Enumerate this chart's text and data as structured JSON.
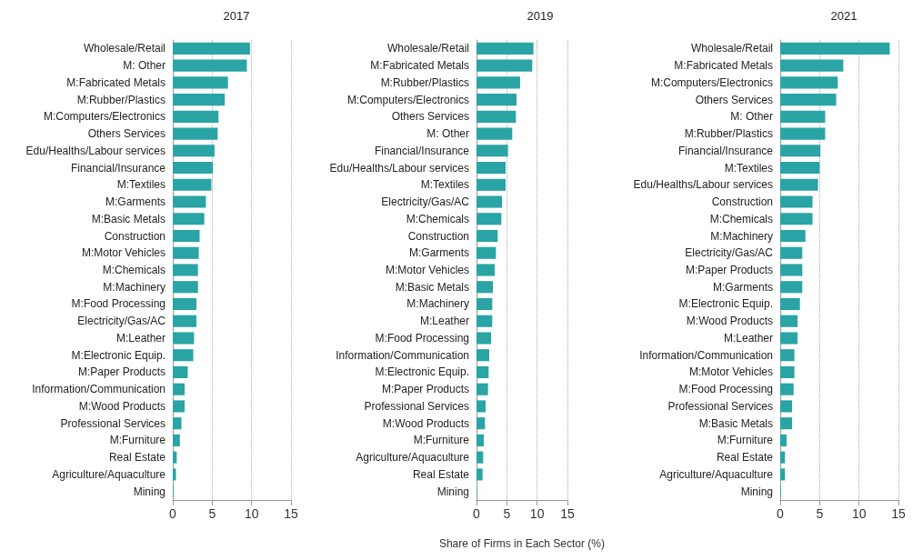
{
  "chart_data": [
    {
      "type": "bar",
      "orientation": "horizontal",
      "title": "2017",
      "color": "#2aa4a4",
      "grid": "x",
      "xlim": [
        0,
        15
      ],
      "xticks": [
        0,
        5,
        10,
        15
      ],
      "categories": [
        "Wholesale/Retail",
        "M: Other",
        "M:Fabricated Metals",
        "M:Rubber/Plastics",
        "M:Computers/Electronics",
        "Others Services",
        "Edu/Healths/Labour services",
        "Financial/Insurance",
        "M:Textiles",
        "M:Garments",
        "M:Basic Metals",
        "Construction",
        "M:Motor Vehicles",
        "M:Chemicals",
        "M:Machinery",
        "M:Food Processing",
        "Electricity/Gas/AC",
        "M:Leather",
        "M:Electronic Equip.",
        "M:Paper Products",
        "Information/Communication",
        "M:Wood Products",
        "Professional Services",
        "M:Furniture",
        "Real Estate",
        "Agriculture/Aquaculture",
        "Mining"
      ],
      "values": [
        9.8,
        9.4,
        7.0,
        6.6,
        5.8,
        5.7,
        5.3,
        5.1,
        4.9,
        4.2,
        4.0,
        3.4,
        3.3,
        3.2,
        3.2,
        3.0,
        3.0,
        2.7,
        2.6,
        1.9,
        1.5,
        1.5,
        1.1,
        0.9,
        0.5,
        0.4,
        0.1
      ]
    },
    {
      "type": "bar",
      "orientation": "horizontal",
      "title": "2019",
      "color": "#2aa4a4",
      "grid": "x",
      "xlim": [
        0,
        15
      ],
      "xticks": [
        0,
        5,
        10,
        15
      ],
      "xlabel": "Share of Firms in Each Sector (%)",
      "categories": [
        "Wholesale/Retail",
        "M:Fabricated Metals",
        "M:Rubber/Plastics",
        "M:Computers/Electronics",
        "Others Services",
        "M: Other",
        "Financial/Insurance",
        "Edu/Healths/Labour services",
        "M:Textiles",
        "Electricity/Gas/AC",
        "M:Chemicals",
        "Construction",
        "M:Garments",
        "M:Motor Vehicles",
        "M:Basic Metals",
        "M:Machinery",
        "M:Leather",
        "M:Food Processing",
        "Information/Communication",
        "M:Electronic Equip.",
        "M:Paper Products",
        "Professional Services",
        "M:Wood Products",
        "M:Furniture",
        "Agriculture/Aquaculture",
        "Real Estate",
        "Mining"
      ],
      "values": [
        9.4,
        9.2,
        7.2,
        6.6,
        6.5,
        5.9,
        5.2,
        4.8,
        4.8,
        4.2,
        4.1,
        3.5,
        3.2,
        3.0,
        2.7,
        2.6,
        2.6,
        2.4,
        2.1,
        2.0,
        1.9,
        1.5,
        1.4,
        1.2,
        1.1,
        1.0,
        0.1
      ]
    },
    {
      "type": "bar",
      "orientation": "horizontal",
      "title": "2021",
      "color": "#2aa4a4",
      "grid": "x",
      "xlim": [
        0,
        15
      ],
      "xticks": [
        0,
        5,
        10,
        15
      ],
      "categories": [
        "Wholesale/Retail",
        "M:Fabricated Metals",
        "M:Computers/Electronics",
        "Others Services",
        "M: Other",
        "M:Rubber/Plastics",
        "Financial/Insurance",
        "M:Textiles",
        "Edu/Healths/Labour services",
        "Construction",
        "M:Chemicals",
        "M:Machinery",
        "Electricity/Gas/AC",
        "M:Paper Products",
        "M:Garments",
        "M:Electronic Equip.",
        "M:Wood Products",
        "M:Leather",
        "Information/Communication",
        "M:Motor Vehicles",
        "M:Food Processing",
        "Professional Services",
        "M:Basic Metals",
        "M:Furniture",
        "Real Estate",
        "Agriculture/Aquaculture",
        "Mining"
      ],
      "values": [
        13.9,
        8.0,
        7.3,
        7.1,
        5.7,
        5.7,
        5.1,
        5.0,
        4.8,
        4.1,
        4.1,
        3.2,
        2.8,
        2.8,
        2.8,
        2.5,
        2.2,
        2.2,
        1.8,
        1.8,
        1.7,
        1.5,
        1.5,
        0.8,
        0.6,
        0.6,
        0.1
      ]
    }
  ]
}
